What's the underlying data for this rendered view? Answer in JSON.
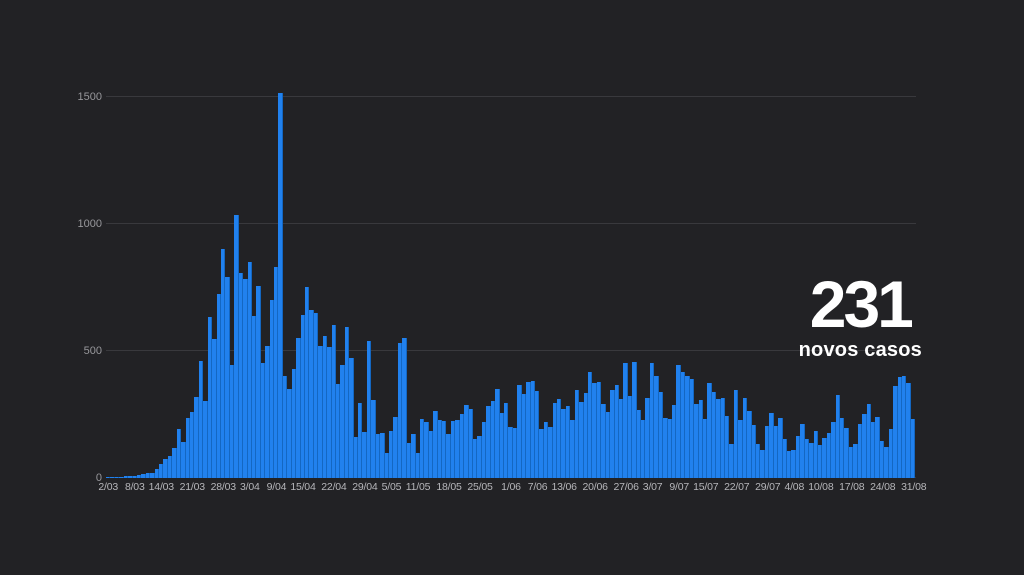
{
  "headline": {
    "value": "231",
    "label": "novos casos"
  },
  "chart_data": {
    "type": "bar",
    "title": "",
    "ylabel": "",
    "xlabel": "",
    "legend_position": "none",
    "grid": true,
    "ylim": [
      0,
      1528
    ],
    "y_ticks": [
      0,
      500,
      1000,
      1500
    ],
    "x_tick_labels": [
      {
        "label": "2/03",
        "day": 0
      },
      {
        "label": "8/03",
        "day": 6
      },
      {
        "label": "14/03",
        "day": 12
      },
      {
        "label": "21/03",
        "day": 19
      },
      {
        "label": "28/03",
        "day": 26
      },
      {
        "label": "3/04",
        "day": 32
      },
      {
        "label": "9/04",
        "day": 38
      },
      {
        "label": "15/04",
        "day": 44
      },
      {
        "label": "22/04",
        "day": 51
      },
      {
        "label": "29/04",
        "day": 58
      },
      {
        "label": "5/05",
        "day": 64
      },
      {
        "label": "11/05",
        "day": 70
      },
      {
        "label": "18/05",
        "day": 77
      },
      {
        "label": "25/05",
        "day": 84
      },
      {
        "label": "1/06",
        "day": 91
      },
      {
        "label": "7/06",
        "day": 97
      },
      {
        "label": "13/06",
        "day": 103
      },
      {
        "label": "20/06",
        "day": 110
      },
      {
        "label": "27/06",
        "day": 117
      },
      {
        "label": "3/07",
        "day": 123
      },
      {
        "label": "9/07",
        "day": 129
      },
      {
        "label": "15/07",
        "day": 135
      },
      {
        "label": "22/07",
        "day": 142
      },
      {
        "label": "29/07",
        "day": 149
      },
      {
        "label": "4/08",
        "day": 155
      },
      {
        "label": "10/08",
        "day": 161
      },
      {
        "label": "17/08",
        "day": 168
      },
      {
        "label": "24/08",
        "day": 175
      },
      {
        "label": "31/08",
        "day": 182
      }
    ],
    "x_range_days": 183,
    "values": [
      2,
      2,
      3,
      4,
      8,
      9,
      9,
      10,
      15,
      18,
      19,
      34,
      57,
      76,
      86,
      117,
      194,
      143,
      235,
      260,
      320,
      460,
      302,
      633,
      549,
      724,
      902,
      792,
      446,
      1035,
      808,
      783,
      852,
      638,
      754,
      452,
      520,
      699,
      830,
      1516,
      400,
      350,
      430,
      550,
      643,
      750,
      660,
      650,
      520,
      560,
      515,
      603,
      371,
      444,
      595,
      472,
      163,
      295,
      183,
      540,
      306,
      173,
      178,
      98,
      184,
      242,
      533,
      553,
      138,
      175,
      98,
      234,
      219,
      187,
      264,
      227,
      226,
      173,
      223,
      228,
      252,
      288,
      271,
      152,
      165,
      219,
      285,
      304,
      350,
      257,
      297,
      200,
      195,
      366,
      331,
      377,
      382,
      342,
      192,
      222,
      199,
      294,
      310,
      270,
      283,
      227,
      346,
      300,
      336,
      417,
      375,
      377,
      292,
      259,
      345,
      367,
      311,
      451,
      323,
      457,
      266,
      229,
      313,
      452,
      400,
      340,
      235,
      232,
      287,
      443,
      418,
      402,
      390,
      291,
      306,
      233,
      375,
      339,
      312,
      313,
      246,
      135,
      345,
      229,
      313,
      263,
      209,
      135,
      111,
      203,
      255,
      205,
      237,
      153,
      106,
      112,
      167,
      213,
      152,
      138,
      186,
      131,
      157,
      178,
      220,
      325,
      235,
      198,
      121,
      132,
      214,
      253,
      291,
      219,
      241,
      145,
      123,
      192,
      362,
      399,
      401,
      374,
      231
    ],
    "colors": {
      "background": "#222225",
      "bar": "#2181ee",
      "bar_edge": "#1467c2",
      "gridline": "#39393d",
      "y_tick_text": "#97979b",
      "x_tick_text": "#b6b6ba",
      "headline_text": "#ffffff"
    }
  }
}
